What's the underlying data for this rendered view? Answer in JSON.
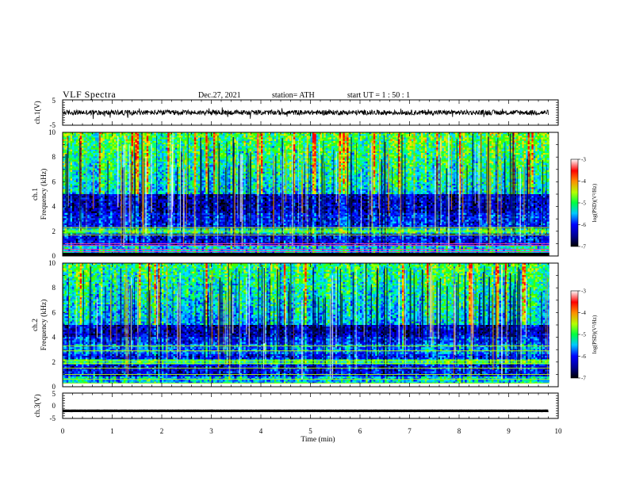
{
  "header": {
    "title": "VLF  Spectra",
    "date": "Dec.27, 2021",
    "station": "station= ATH",
    "start": "start  UT  =   1  : 50 : 1"
  },
  "chart_data": [
    {
      "type": "line",
      "panel": "ch1-waveform",
      "ylabel": "ch.1(V)",
      "xlim": [
        0,
        10
      ],
      "ylim": [
        -5,
        5
      ],
      "yticks": [
        "5",
        "-5"
      ],
      "trace": {
        "mean": 0,
        "amplitude_approx": 1,
        "x_end": 9.8
      }
    },
    {
      "type": "heatmap",
      "panel": "ch1-spectrogram",
      "ylabel_line1": "ch.1",
      "ylabel_line2": "Frequency (kHz)",
      "xlim": [
        0,
        10
      ],
      "ylim": [
        0,
        10
      ],
      "yticks": [
        "0",
        "2",
        "4",
        "6",
        "8",
        "10"
      ],
      "colorbar": {
        "label": "log(PSD)(V²/Hz)",
        "ticks": [
          "-3",
          "-4",
          "-5",
          "-6",
          "-7"
        ],
        "range": [
          -7,
          -3
        ]
      }
    },
    {
      "type": "heatmap",
      "panel": "ch2-spectrogram",
      "ylabel_line1": "ch.2",
      "ylabel_line2": "Frequency (kHz)",
      "xlim": [
        0,
        10
      ],
      "ylim": [
        0,
        10
      ],
      "yticks": [
        "0",
        "2",
        "4",
        "6",
        "8",
        "10"
      ],
      "colorbar": {
        "label": "log(PSD)(V²/Hz)",
        "ticks": [
          "-3",
          "-4",
          "-5",
          "-6",
          "-7"
        ],
        "range": [
          -7,
          -3
        ]
      }
    },
    {
      "type": "line",
      "panel": "ch3-waveform",
      "ylabel": "ch.3(V)",
      "xlim": [
        0,
        10
      ],
      "ylim": [
        -5,
        5
      ],
      "yticks": [
        "5",
        "0",
        "-5"
      ],
      "trace": {
        "mean": -2,
        "amplitude_approx": 0.1,
        "x_end": 9.8
      }
    }
  ],
  "xaxis": {
    "label": "Time  (min)",
    "ticks": [
      "0",
      "1",
      "2",
      "3",
      "4",
      "5",
      "6",
      "7",
      "8",
      "9",
      "10"
    ]
  }
}
